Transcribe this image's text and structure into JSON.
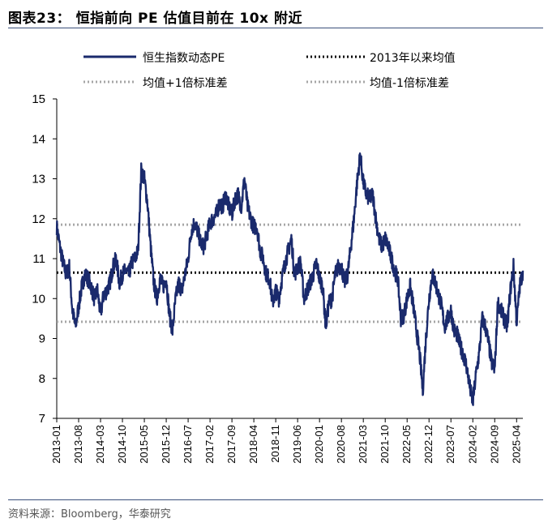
{
  "header": {
    "title": "图表23：  恒指前向 PE 估值目前在 10x 附近"
  },
  "footer": {
    "source": "资料来源：Bloomberg，华泰研究"
  },
  "chart_data": {
    "type": "line",
    "ylim": [
      7,
      15
    ],
    "yticks": [
      "7",
      "8",
      "9",
      "10",
      "11",
      "12",
      "13",
      "14",
      "15"
    ],
    "xlim": [
      "2013-01",
      "2025-06"
    ],
    "xticks": [
      "2013-01",
      "2013-08",
      "2014-03",
      "2014-10",
      "2015-05",
      "2015-12",
      "2016-07",
      "2017-02",
      "2017-09",
      "2018-04",
      "2018-11",
      "2019-06",
      "2020-01",
      "2020-08",
      "2021-03",
      "2021-10",
      "2022-05",
      "2022-12",
      "2023-07",
      "2024-02",
      "2024-09",
      "2025-04"
    ],
    "legend": {
      "placement": "top",
      "pe_label": "恒生指数动态PE",
      "mean_label": "2013年以来均值",
      "plus1_label": "均值+1倍标准差",
      "minus1_label": "均值-1倍标准差"
    },
    "colors": {
      "pe": "#1a2a6c",
      "mean": "#000000",
      "std": "#a6a6a6",
      "axis": "#000000"
    },
    "reference_lines": {
      "mean": 10.65,
      "plus1": 11.85,
      "minus1": 9.42
    },
    "series": [
      {
        "name": "恒生指数动态PE",
        "points": [
          [
            "2013-01",
            11.8
          ],
          [
            "2013-02",
            11.3
          ],
          [
            "2013-03",
            10.9
          ],
          [
            "2013-04",
            10.6
          ],
          [
            "2013-05",
            10.8
          ],
          [
            "2013-06",
            9.7
          ],
          [
            "2013-07",
            9.3
          ],
          [
            "2013-08",
            9.8
          ],
          [
            "2013-09",
            10.3
          ],
          [
            "2013-10",
            10.6
          ],
          [
            "2013-11",
            10.5
          ],
          [
            "2013-12",
            10.3
          ],
          [
            "2014-01",
            10.0
          ],
          [
            "2014-02",
            10.2
          ],
          [
            "2014-03",
            9.6
          ],
          [
            "2014-04",
            10.1
          ],
          [
            "2014-05",
            10.2
          ],
          [
            "2014-06",
            10.4
          ],
          [
            "2014-07",
            10.8
          ],
          [
            "2014-08",
            11.0
          ],
          [
            "2014-09",
            10.4
          ],
          [
            "2014-10",
            10.6
          ],
          [
            "2014-11",
            10.7
          ],
          [
            "2014-12",
            10.6
          ],
          [
            "2015-01",
            10.9
          ],
          [
            "2015-02",
            11.0
          ],
          [
            "2015-03",
            11.2
          ],
          [
            "2015-04",
            13.2
          ],
          [
            "2015-05",
            13.0
          ],
          [
            "2015-06",
            12.4
          ],
          [
            "2015-07",
            11.3
          ],
          [
            "2015-08",
            10.4
          ],
          [
            "2015-09",
            10.0
          ],
          [
            "2015-10",
            10.5
          ],
          [
            "2015-11",
            10.3
          ],
          [
            "2015-12",
            10.5
          ],
          [
            "2016-01",
            9.6
          ],
          [
            "2016-02",
            9.2
          ],
          [
            "2016-03",
            10.0
          ],
          [
            "2016-04",
            10.4
          ],
          [
            "2016-05",
            10.2
          ],
          [
            "2016-06",
            10.6
          ],
          [
            "2016-07",
            11.0
          ],
          [
            "2016-08",
            11.7
          ],
          [
            "2016-09",
            11.9
          ],
          [
            "2016-10",
            11.7
          ],
          [
            "2016-11",
            11.4
          ],
          [
            "2016-12",
            11.3
          ],
          [
            "2017-01",
            11.6
          ],
          [
            "2017-02",
            11.9
          ],
          [
            "2017-03",
            12.0
          ],
          [
            "2017-04",
            12.1
          ],
          [
            "2017-05",
            12.4
          ],
          [
            "2017-06",
            12.3
          ],
          [
            "2017-07",
            12.6
          ],
          [
            "2017-08",
            12.3
          ],
          [
            "2017-09",
            12.1
          ],
          [
            "2017-10",
            12.5
          ],
          [
            "2017-11",
            12.6
          ],
          [
            "2017-12",
            12.3
          ],
          [
            "2018-01",
            13.0
          ],
          [
            "2018-02",
            12.3
          ],
          [
            "2018-03",
            12.0
          ],
          [
            "2018-04",
            11.8
          ],
          [
            "2018-05",
            11.8
          ],
          [
            "2018-06",
            11.2
          ],
          [
            "2018-07",
            11.0
          ],
          [
            "2018-08",
            10.6
          ],
          [
            "2018-09",
            10.5
          ],
          [
            "2018-10",
            9.9
          ],
          [
            "2018-11",
            10.2
          ],
          [
            "2018-12",
            10.0
          ],
          [
            "2019-01",
            10.5
          ],
          [
            "2019-02",
            10.9
          ],
          [
            "2019-03",
            11.2
          ],
          [
            "2019-04",
            11.5
          ],
          [
            "2019-05",
            10.6
          ],
          [
            "2019-06",
            10.8
          ],
          [
            "2019-07",
            10.9
          ],
          [
            "2019-08",
            10.0
          ],
          [
            "2019-09",
            10.2
          ],
          [
            "2019-10",
            10.4
          ],
          [
            "2019-11",
            10.6
          ],
          [
            "2019-12",
            10.9
          ],
          [
            "2020-01",
            10.5
          ],
          [
            "2020-02",
            10.3
          ],
          [
            "2020-03",
            9.3
          ],
          [
            "2020-04",
            9.9
          ],
          [
            "2020-05",
            10.0
          ],
          [
            "2020-06",
            10.6
          ],
          [
            "2020-07",
            10.8
          ],
          [
            "2020-08",
            10.8
          ],
          [
            "2020-09",
            10.4
          ],
          [
            "2020-10",
            10.6
          ],
          [
            "2020-11",
            11.3
          ],
          [
            "2020-12",
            12.0
          ],
          [
            "2021-01",
            12.9
          ],
          [
            "2021-02",
            13.6
          ],
          [
            "2021-03",
            12.9
          ],
          [
            "2021-04",
            12.6
          ],
          [
            "2021-05",
            12.5
          ],
          [
            "2021-06",
            12.6
          ],
          [
            "2021-07",
            12.0
          ],
          [
            "2021-08",
            11.5
          ],
          [
            "2021-09",
            11.3
          ],
          [
            "2021-10",
            11.5
          ],
          [
            "2021-11",
            11.3
          ],
          [
            "2021-12",
            11.0
          ],
          [
            "2022-01",
            10.7
          ],
          [
            "2022-02",
            10.5
          ],
          [
            "2022-03",
            9.5
          ],
          [
            "2022-04",
            9.6
          ],
          [
            "2022-05",
            10.0
          ],
          [
            "2022-06",
            10.3
          ],
          [
            "2022-07",
            9.8
          ],
          [
            "2022-08",
            9.2
          ],
          [
            "2022-09",
            8.6
          ],
          [
            "2022-10",
            7.7
          ],
          [
            "2022-11",
            9.0
          ],
          [
            "2022-12",
            10.0
          ],
          [
            "2023-01",
            10.6
          ],
          [
            "2023-02",
            10.4
          ],
          [
            "2023-03",
            10.1
          ],
          [
            "2023-04",
            9.8
          ],
          [
            "2023-05",
            9.3
          ],
          [
            "2023-06",
            9.5
          ],
          [
            "2023-07",
            9.7
          ],
          [
            "2023-08",
            9.2
          ],
          [
            "2023-09",
            9.1
          ],
          [
            "2023-10",
            8.8
          ],
          [
            "2023-11",
            8.6
          ],
          [
            "2023-12",
            8.3
          ],
          [
            "2024-01",
            7.8
          ],
          [
            "2024-02",
            7.4
          ],
          [
            "2024-03",
            8.1
          ],
          [
            "2024-04",
            8.6
          ],
          [
            "2024-05",
            9.5
          ],
          [
            "2024-06",
            9.3
          ],
          [
            "2024-07",
            8.9
          ],
          [
            "2024-08",
            8.4
          ],
          [
            "2024-09",
            8.2
          ],
          [
            "2024-10",
            9.9
          ],
          [
            "2024-11",
            9.7
          ],
          [
            "2024-12",
            9.5
          ],
          [
            "2025-01",
            9.3
          ],
          [
            "2025-02",
            10.2
          ],
          [
            "2025-03",
            10.8
          ],
          [
            "2025-04",
            9.4
          ],
          [
            "2025-05",
            10.3
          ],
          [
            "2025-06",
            10.7
          ]
        ]
      }
    ]
  }
}
